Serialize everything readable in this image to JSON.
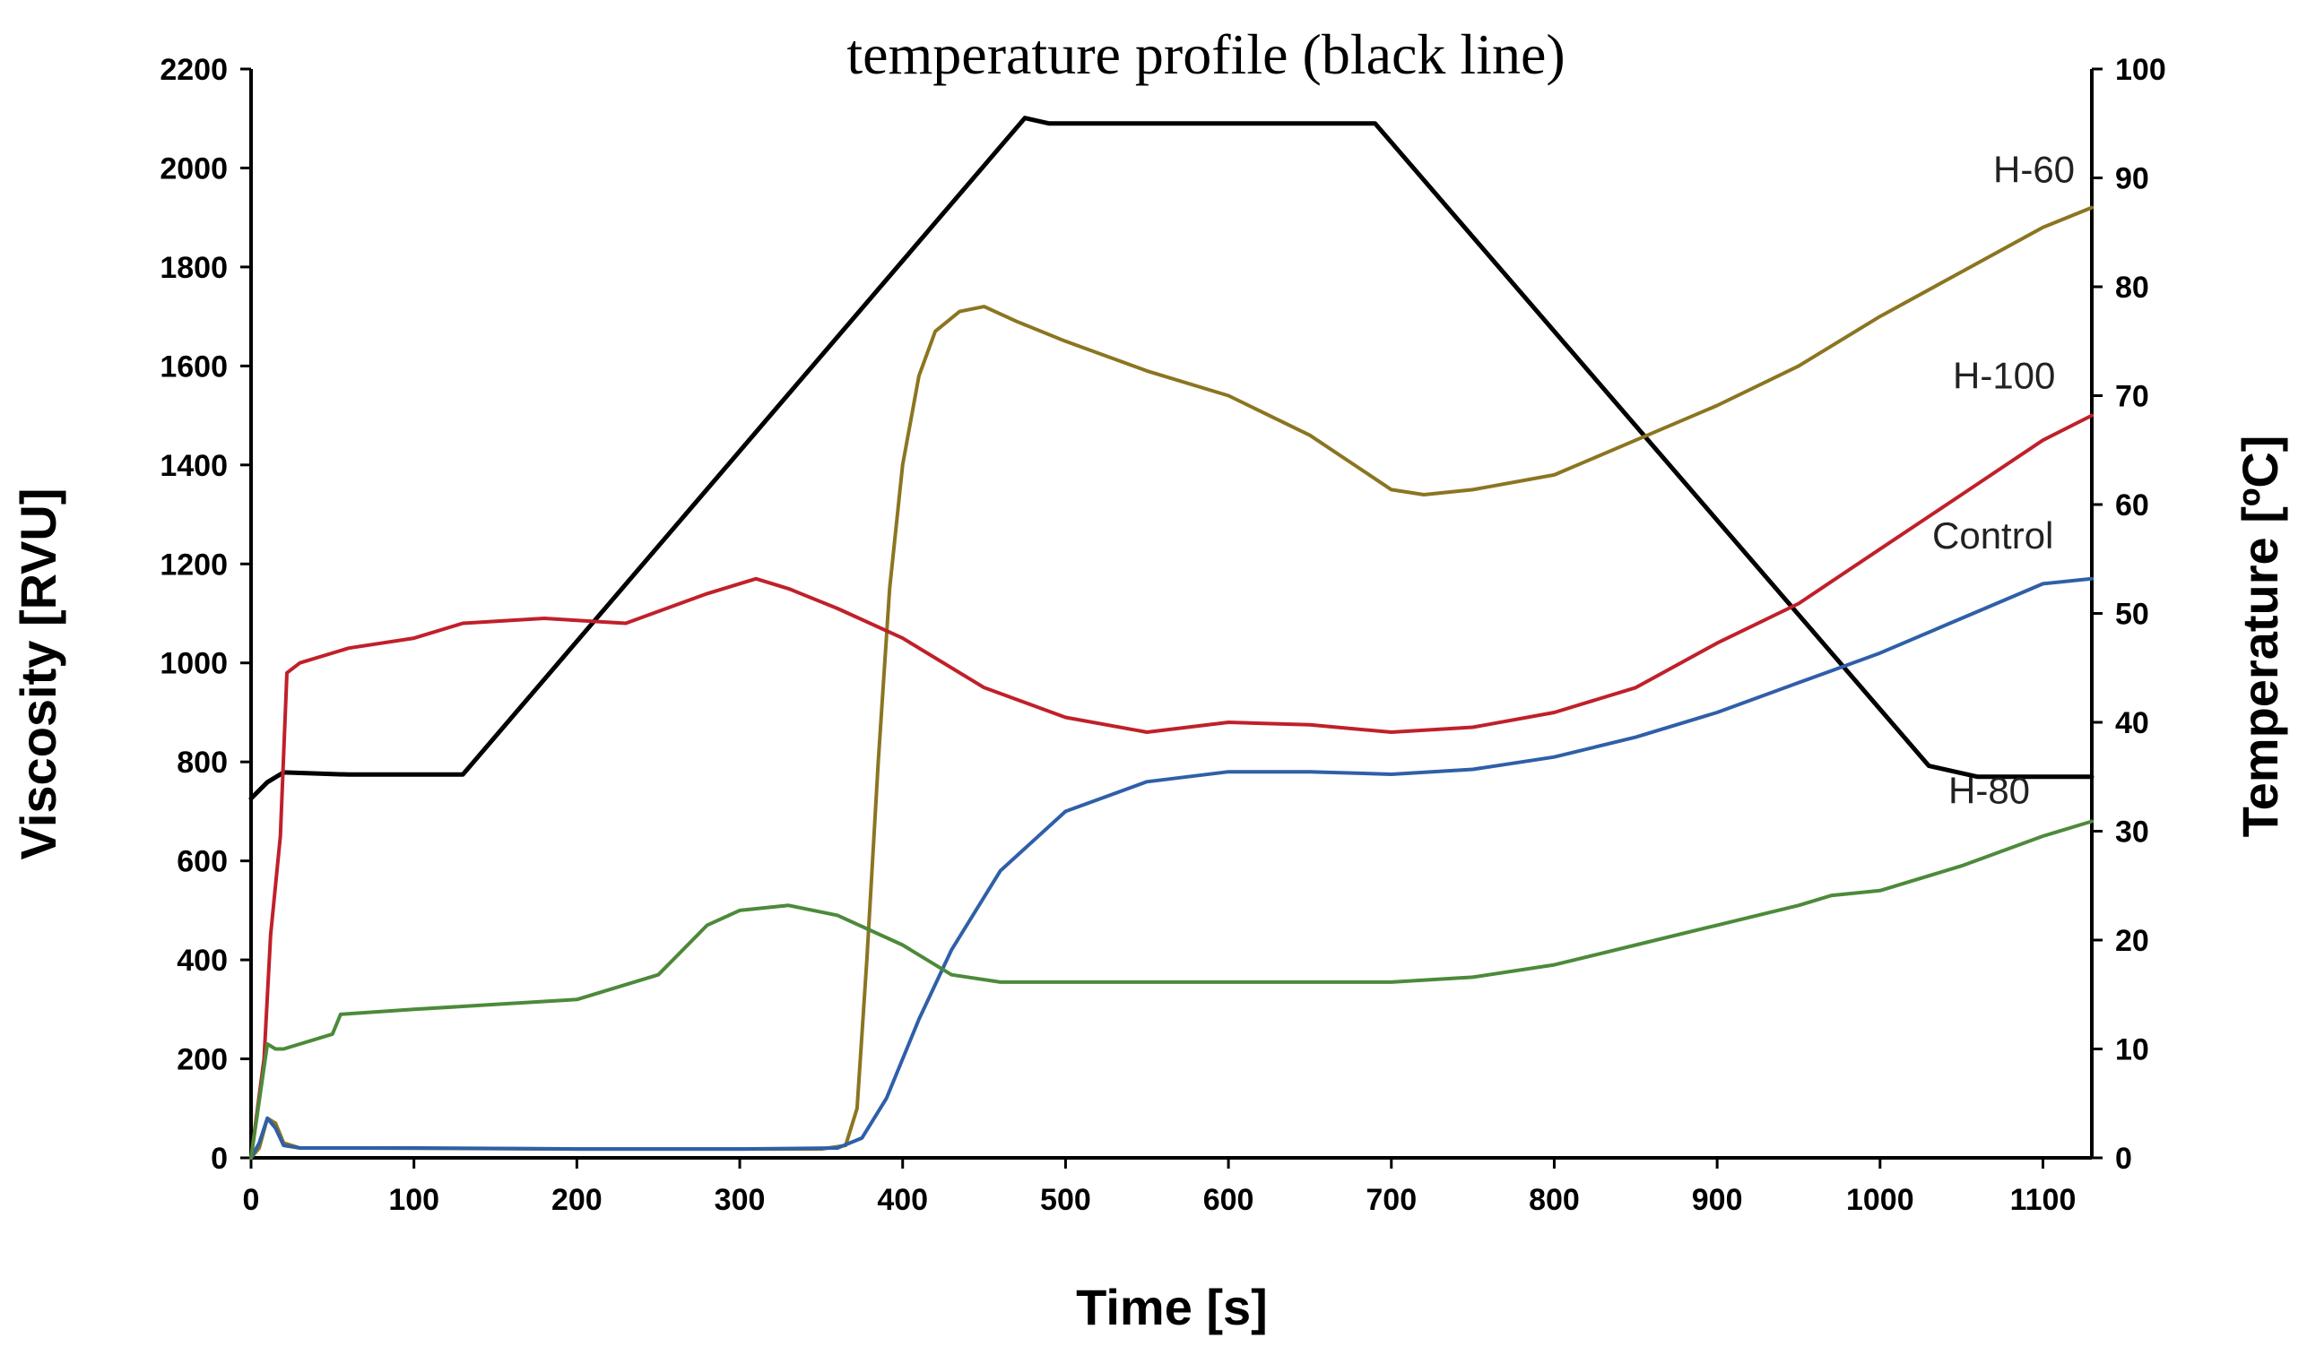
{
  "chart_data": {
    "type": "line",
    "title": "temperature profile (black line)",
    "xlabel": "Time [s]",
    "ylabel": "Viscosity [RVU]",
    "y2label": "Temperature [ºC]",
    "xlim": [
      0,
      1130
    ],
    "ylim": [
      0,
      2200
    ],
    "y2lim": [
      0,
      100
    ],
    "xticks": [
      0,
      100,
      200,
      300,
      400,
      500,
      600,
      700,
      800,
      900,
      1000,
      1100
    ],
    "yticks": [
      0,
      200,
      400,
      600,
      800,
      1000,
      1200,
      1400,
      1600,
      1800,
      2000,
      2200
    ],
    "y2ticks": [
      0,
      10,
      20,
      30,
      40,
      50,
      60,
      70,
      80,
      90,
      100
    ],
    "grid": false,
    "series": [
      {
        "name": "temperature profile",
        "axis": "right",
        "color": "#000000",
        "label": "",
        "x": [
          0,
          10,
          20,
          60,
          130,
          475,
          490,
          690,
          1030,
          1060,
          1130
        ],
        "y": [
          33,
          34.5,
          35.4,
          35.2,
          35.2,
          95.5,
          95,
          95,
          36,
          35,
          35
        ]
      },
      {
        "name": "H-60",
        "axis": "left",
        "color": "#8B7520",
        "label": "H-60",
        "x": [
          0,
          5,
          10,
          15,
          20,
          30,
          60,
          200,
          300,
          350,
          365,
          372,
          378,
          385,
          392,
          400,
          410,
          420,
          435,
          450,
          470,
          500,
          550,
          600,
          650,
          700,
          720,
          750,
          800,
          850,
          900,
          950,
          1000,
          1050,
          1100,
          1130
        ],
        "y": [
          0,
          20,
          80,
          70,
          30,
          20,
          20,
          18,
          18,
          18,
          25,
          100,
          400,
          800,
          1150,
          1400,
          1580,
          1670,
          1710,
          1720,
          1690,
          1650,
          1590,
          1540,
          1460,
          1350,
          1340,
          1350,
          1380,
          1450,
          1520,
          1600,
          1700,
          1790,
          1880,
          1920
        ]
      },
      {
        "name": "H-100",
        "axis": "left",
        "color": "#C0202A",
        "label": "H-100",
        "x": [
          0,
          8,
          12,
          18,
          22,
          30,
          60,
          100,
          130,
          180,
          230,
          280,
          310,
          330,
          360,
          400,
          450,
          500,
          550,
          600,
          650,
          700,
          750,
          800,
          850,
          900,
          950,
          1000,
          1050,
          1100,
          1130
        ],
        "y": [
          0,
          200,
          450,
          650,
          980,
          1000,
          1030,
          1050,
          1080,
          1090,
          1080,
          1140,
          1170,
          1150,
          1110,
          1050,
          950,
          890,
          860,
          880,
          875,
          860,
          870,
          900,
          950,
          1040,
          1120,
          1230,
          1340,
          1450,
          1500
        ]
      },
      {
        "name": "Control",
        "axis": "left",
        "color": "#2F5FA8",
        "label": "Control",
        "x": [
          0,
          5,
          10,
          15,
          20,
          30,
          100,
          200,
          300,
          360,
          375,
          390,
          410,
          430,
          460,
          500,
          550,
          600,
          650,
          700,
          750,
          800,
          850,
          900,
          950,
          1000,
          1050,
          1100,
          1130
        ],
        "y": [
          0,
          30,
          80,
          60,
          25,
          20,
          20,
          18,
          18,
          20,
          40,
          120,
          280,
          420,
          580,
          700,
          760,
          780,
          780,
          775,
          785,
          810,
          850,
          900,
          960,
          1020,
          1090,
          1160,
          1170
        ]
      },
      {
        "name": "H-80",
        "axis": "left",
        "color": "#4C8A3A",
        "label": "H-80",
        "x": [
          0,
          10,
          15,
          20,
          50,
          55,
          100,
          150,
          200,
          250,
          280,
          300,
          330,
          360,
          400,
          430,
          460,
          500,
          550,
          600,
          650,
          700,
          750,
          800,
          850,
          900,
          950,
          970,
          1000,
          1050,
          1100,
          1130
        ],
        "y": [
          0,
          230,
          220,
          220,
          250,
          290,
          300,
          310,
          320,
          370,
          470,
          500,
          510,
          490,
          430,
          370,
          355,
          355,
          355,
          355,
          355,
          355,
          365,
          390,
          430,
          470,
          510,
          530,
          540,
          590,
          650,
          680
        ]
      }
    ]
  }
}
